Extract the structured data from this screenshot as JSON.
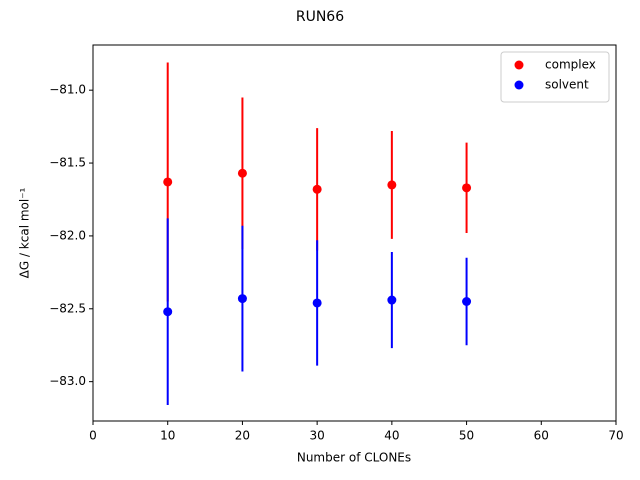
{
  "chart_data": {
    "type": "scatter",
    "title": "RUN66",
    "x_label": "Number of CLONEs",
    "y_label": "ΔG / kcal mol⁻¹",
    "x": [
      10,
      20,
      30,
      40,
      50
    ],
    "series": [
      {
        "name": "complex",
        "color": "#ff0000",
        "values": [
          -81.63,
          -81.57,
          -81.68,
          -81.65,
          -81.67
        ],
        "errors": [
          0.82,
          0.52,
          0.42,
          0.37,
          0.31
        ]
      },
      {
        "name": "solvent",
        "color": "#0000ff",
        "values": [
          -82.52,
          -82.43,
          -82.46,
          -82.44,
          -82.45
        ],
        "errors": [
          0.64,
          0.5,
          0.43,
          0.33,
          0.3
        ]
      }
    ],
    "xlim": [
      0,
      70
    ],
    "xticks": [
      0,
      10,
      20,
      30,
      40,
      50,
      60,
      70
    ],
    "ylim": [
      -83.27,
      -80.69
    ],
    "yticks": [
      {
        "value": -83.0,
        "label": "−83.0"
      },
      {
        "value": -82.5,
        "label": "−82.5"
      },
      {
        "value": -82.0,
        "label": "−82.0"
      },
      {
        "value": -81.5,
        "label": "−81.5"
      },
      {
        "value": -81.0,
        "label": "−81.0"
      }
    ],
    "legend": "upper right"
  }
}
